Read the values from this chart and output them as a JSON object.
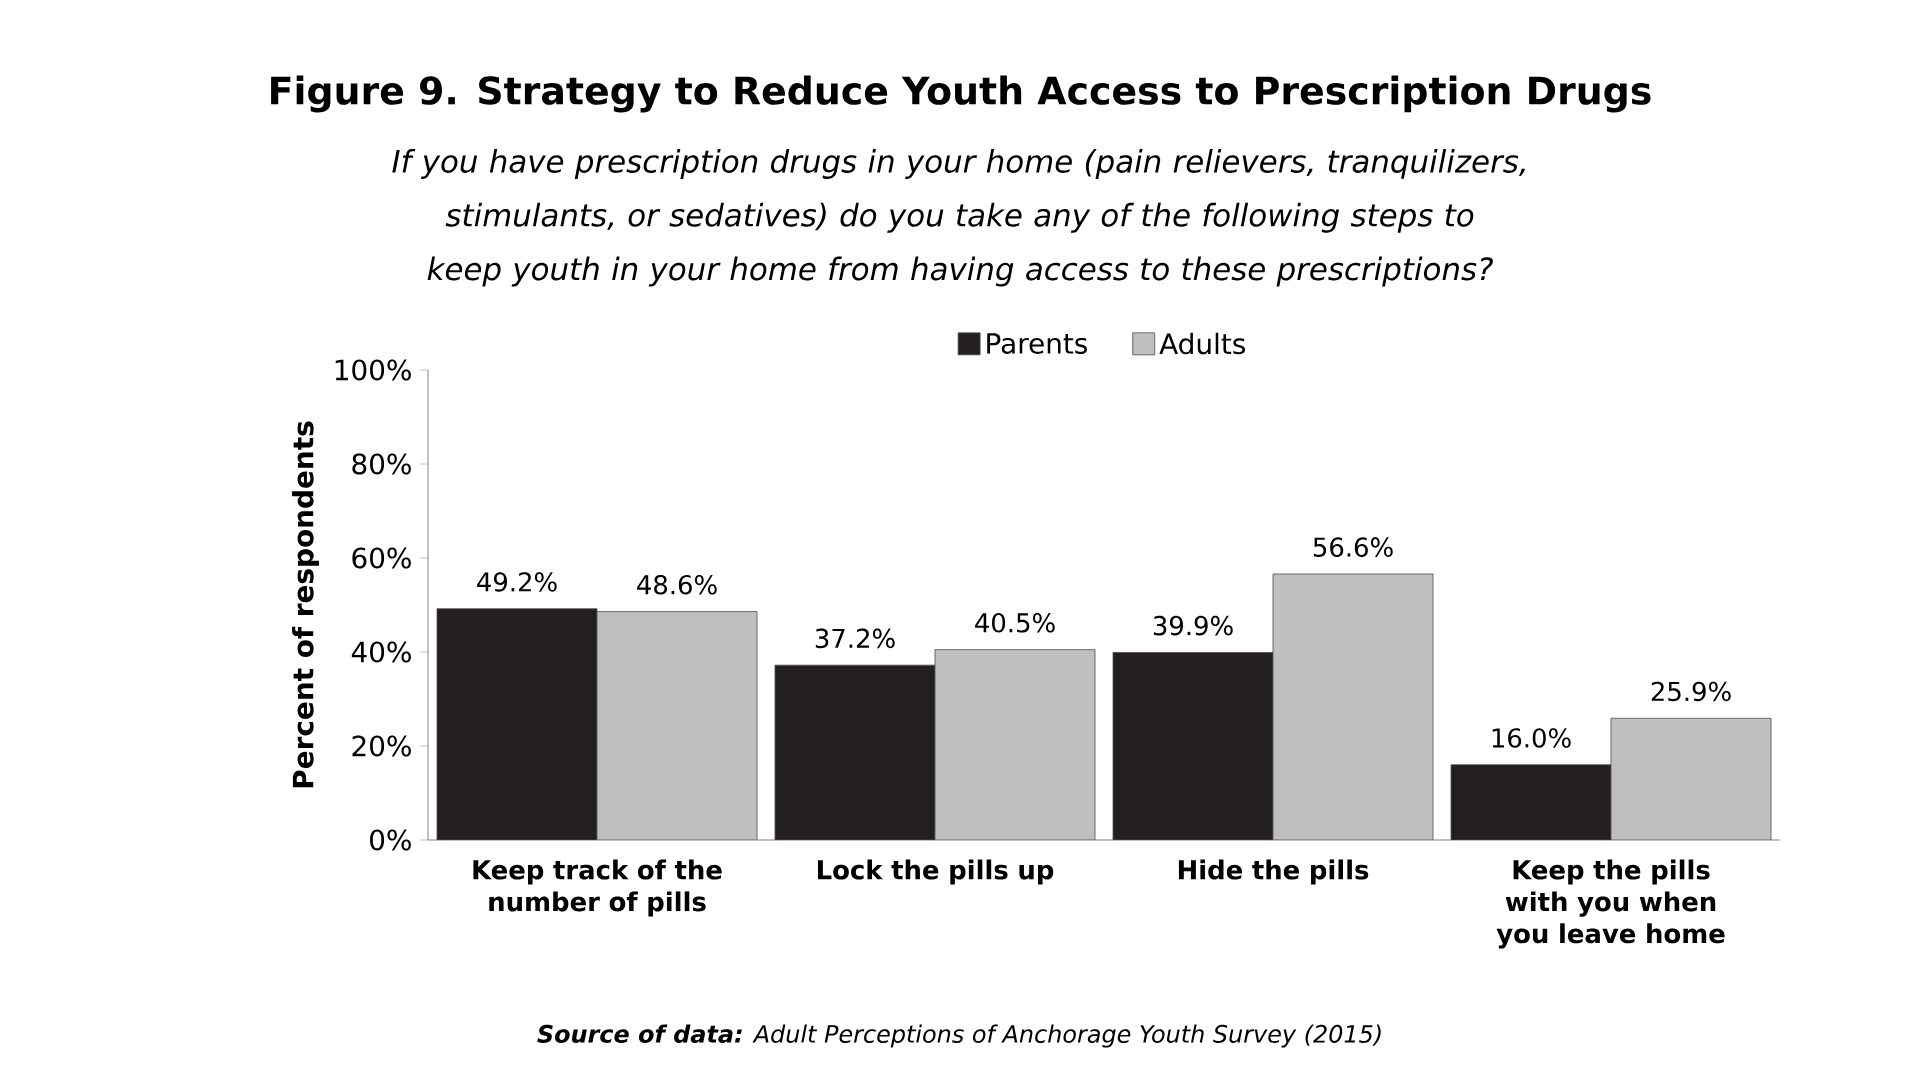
{
  "chart_data": {
    "type": "bar",
    "title": "Figure 9. Strategy to Reduce Youth Access to Prescription Drugs",
    "subtitle": "If you have prescription drugs in your home (pain relievers, tranquilizers, stimulants, or sedatives) do you take any of the following steps to keep youth in your home from having access to these prescriptions?",
    "ylabel": "Percent of respondents",
    "categories": [
      "Keep track of the number of pills",
      "Lock the pills up",
      "Hide the pills",
      "Keep the pills with you when you leave home"
    ],
    "series": [
      {
        "name": "Parents",
        "color": "#231f20",
        "values": [
          49.2,
          37.2,
          39.9,
          16.0
        ],
        "value_labels": [
          "49.2%",
          "37.2%",
          "39.9%",
          "16.0%"
        ]
      },
      {
        "name": "Adults",
        "color": "#bfbfbf",
        "values": [
          48.6,
          40.5,
          56.6,
          25.9
        ],
        "value_labels": [
          "48.6%",
          "40.5%",
          "56.6%",
          "25.9%"
        ]
      }
    ],
    "ylim": [
      0,
      100
    ],
    "yticks": [
      {
        "value": 0,
        "label": "0%"
      },
      {
        "value": 20,
        "label": "20%"
      },
      {
        "value": 40,
        "label": "40%"
      },
      {
        "value": 60,
        "label": "60%"
      },
      {
        "value": 80,
        "label": "80%"
      },
      {
        "value": 100,
        "label": "100%"
      }
    ],
    "legend": "top",
    "grid": false,
    "annotations": [
      "**Source of data:** Adult Perceptions of Anchorage Youth Survey (2015)"
    ]
  }
}
